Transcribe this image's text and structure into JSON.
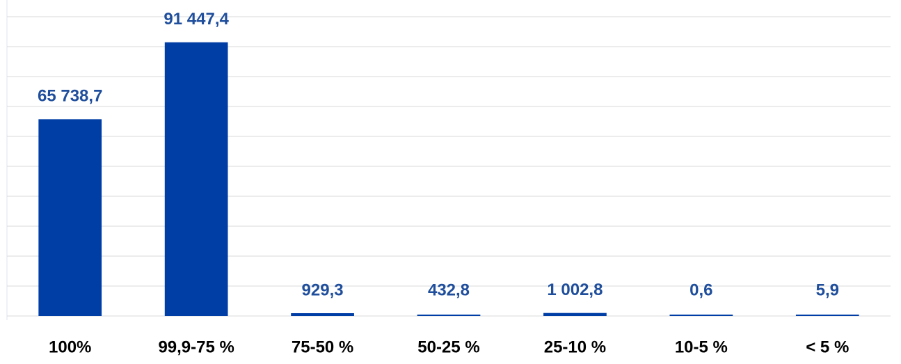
{
  "chart_data": {
    "type": "bar",
    "categories": [
      "100%",
      "99,9-75 %",
      "75-50 %",
      "50-25 %",
      "25-10 %",
      "10-5 %",
      "< 5 %"
    ],
    "values": [
      65738.7,
      91447.4,
      929.3,
      432.8,
      1002.8,
      0.6,
      5.9
    ],
    "value_labels": [
      "65 738,7",
      "91 447,4",
      "929,3",
      "432,8",
      "1 002,8",
      "0,6",
      "5,9"
    ],
    "color": "#003da5",
    "ylim": [
      0,
      100000
    ],
    "yticks": [
      0,
      10000,
      20000,
      30000,
      40000,
      50000,
      60000,
      70000,
      80000,
      90000,
      100000
    ],
    "grid": true
  }
}
